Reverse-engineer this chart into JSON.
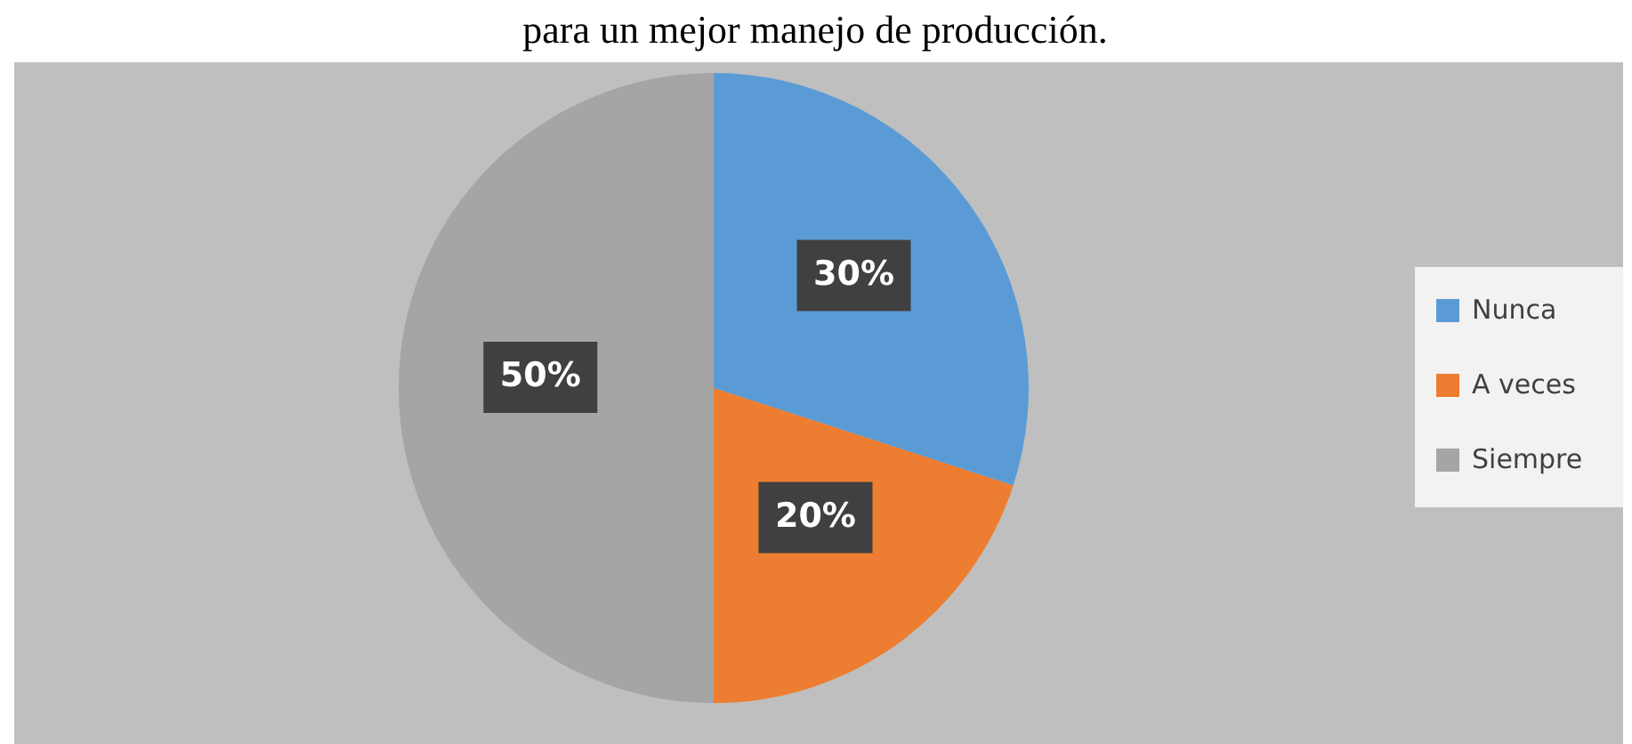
{
  "chart_data": {
    "type": "pie",
    "title": "para un mejor manejo de producción.",
    "categories": [
      "Nunca",
      "A veces",
      "Siempre"
    ],
    "values": [
      30,
      20,
      50
    ],
    "colors": [
      "#5b9bd5",
      "#ed7d31",
      "#a5a5a5"
    ],
    "value_labels": [
      "30%",
      "20%",
      "50%"
    ],
    "legend": "right"
  }
}
